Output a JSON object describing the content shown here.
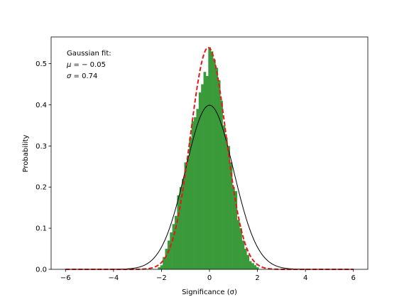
{
  "chart_data": {
    "type": "bar",
    "title": "",
    "xlabel": "Significance (σ)",
    "ylabel": "Probability",
    "xlim": [
      -6.6,
      6.6
    ],
    "ylim": [
      0.0,
      0.565
    ],
    "xticks": [
      -6,
      -4,
      -2,
      0,
      2,
      4,
      6
    ],
    "xtick_labels": [
      "−6",
      "−4",
      "−2",
      "0",
      "2",
      "4",
      "6"
    ],
    "yticks": [
      0.0,
      0.1,
      0.2,
      0.3,
      0.4,
      0.5
    ],
    "ytick_labels": [
      "0.0",
      "0.1",
      "0.2",
      "0.3",
      "0.4",
      "0.5"
    ],
    "grid": false,
    "annotation": {
      "line1": "Gaussian fit:",
      "line2_symbol": "μ",
      "line2_value": " = − 0.05",
      "line3_symbol": "σ",
      "line3_value": " = 0.74"
    },
    "histogram": {
      "color": "#3a9a3a",
      "bin_width": 0.1,
      "bins": [
        {
          "x": -2.1,
          "y": 0.005
        },
        {
          "x": -2.0,
          "y": 0.01
        },
        {
          "x": -1.9,
          "y": 0.03
        },
        {
          "x": -1.8,
          "y": 0.05
        },
        {
          "x": -1.7,
          "y": 0.07
        },
        {
          "x": -1.6,
          "y": 0.09
        },
        {
          "x": -1.5,
          "y": 0.11
        },
        {
          "x": -1.4,
          "y": 0.13
        },
        {
          "x": -1.3,
          "y": 0.18
        },
        {
          "x": -1.2,
          "y": 0.2
        },
        {
          "x": -1.1,
          "y": 0.22
        },
        {
          "x": -1.0,
          "y": 0.26
        },
        {
          "x": -0.9,
          "y": 0.27
        },
        {
          "x": -0.8,
          "y": 0.32
        },
        {
          "x": -0.7,
          "y": 0.36
        },
        {
          "x": -0.6,
          "y": 0.37
        },
        {
          "x": -0.5,
          "y": 0.39
        },
        {
          "x": -0.4,
          "y": 0.43
        },
        {
          "x": -0.3,
          "y": 0.45
        },
        {
          "x": -0.2,
          "y": 0.48
        },
        {
          "x": -0.1,
          "y": 0.47
        },
        {
          "x": 0.0,
          "y": 0.54
        },
        {
          "x": 0.1,
          "y": 0.53
        },
        {
          "x": 0.2,
          "y": 0.51
        },
        {
          "x": 0.3,
          "y": 0.49
        },
        {
          "x": 0.4,
          "y": 0.46
        },
        {
          "x": 0.5,
          "y": 0.41
        },
        {
          "x": 0.6,
          "y": 0.35
        },
        {
          "x": 0.7,
          "y": 0.32
        },
        {
          "x": 0.8,
          "y": 0.3
        },
        {
          "x": 0.9,
          "y": 0.26
        },
        {
          "x": 1.0,
          "y": 0.2
        },
        {
          "x": 1.1,
          "y": 0.19
        },
        {
          "x": 1.2,
          "y": 0.12
        },
        {
          "x": 1.3,
          "y": 0.1
        },
        {
          "x": 1.4,
          "y": 0.07
        },
        {
          "x": 1.5,
          "y": 0.05
        },
        {
          "x": 1.6,
          "y": 0.035
        },
        {
          "x": 1.7,
          "y": 0.02
        },
        {
          "x": 1.8,
          "y": 0.015
        },
        {
          "x": 1.9,
          "y": 0.01
        },
        {
          "x": 2.0,
          "y": 0.005
        }
      ]
    },
    "curves": [
      {
        "style": "solid",
        "color": "#000000",
        "mu": 0.0,
        "sigma": 1.0,
        "x_range": [
          -6,
          6
        ]
      },
      {
        "style": "dashed",
        "color": "#e31a1c",
        "mu": -0.05,
        "sigma": 0.74,
        "x_range": [
          -6,
          6
        ]
      }
    ]
  }
}
